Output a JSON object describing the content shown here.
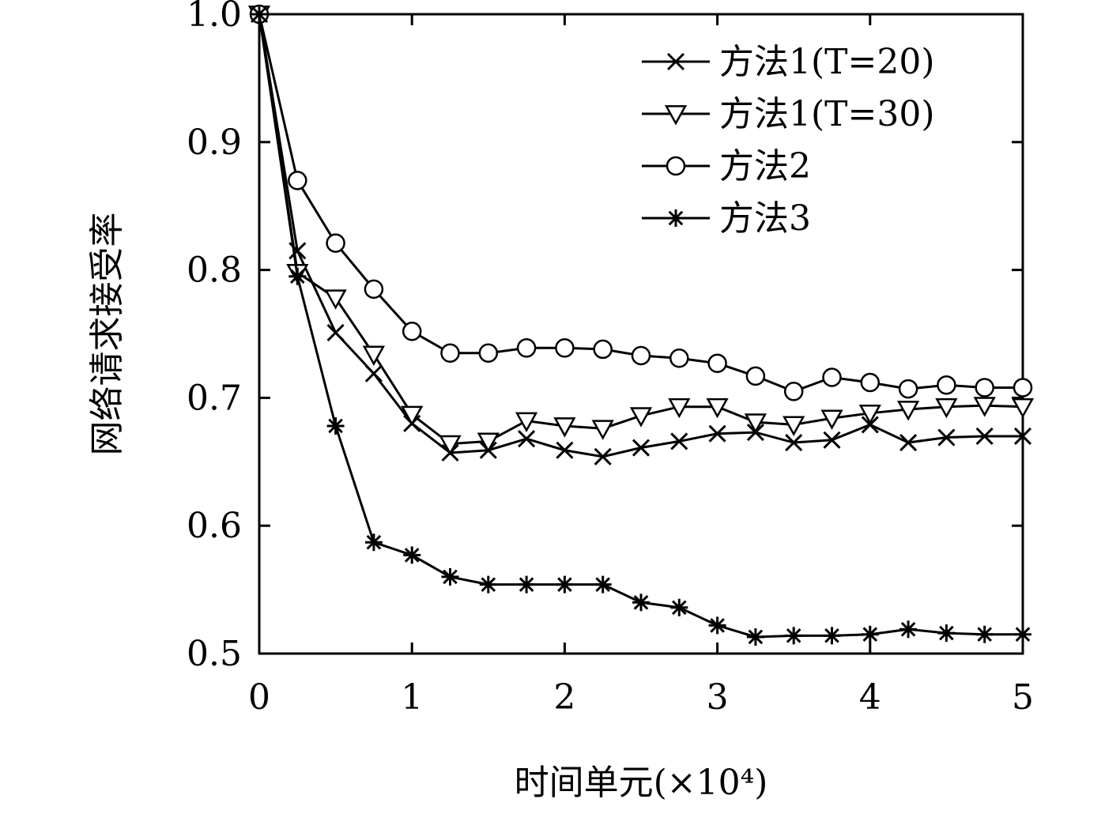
{
  "chart_data": {
    "type": "line",
    "title": "",
    "xlabel": "时间单元(×10⁴)",
    "ylabel": "网络请求接受率",
    "xlim": [
      0,
      5
    ],
    "ylim": [
      0.5,
      1.0
    ],
    "x_ticks": [
      "0",
      "1",
      "2",
      "3",
      "4",
      "5"
    ],
    "y_ticks": [
      "0.5",
      "0.6",
      "0.7",
      "0.8",
      "0.9",
      "1.0"
    ],
    "grid": false,
    "legend_position": "top-right",
    "x": [
      0,
      0.25,
      0.5,
      0.75,
      1.0,
      1.25,
      1.5,
      1.75,
      2.0,
      2.25,
      2.5,
      2.75,
      3.0,
      3.25,
      3.5,
      3.75,
      4.0,
      4.25,
      4.5,
      4.75,
      5.0
    ],
    "series": [
      {
        "name": "方法1(T=20)",
        "marker": "x",
        "values": [
          1.0,
          0.815,
          0.751,
          0.719,
          0.68,
          0.657,
          0.659,
          0.668,
          0.659,
          0.654,
          0.661,
          0.666,
          0.672,
          0.673,
          0.665,
          0.667,
          0.679,
          0.665,
          0.669,
          0.67,
          0.67
        ]
      },
      {
        "name": "方法1(T=30)",
        "marker": "triangle-down",
        "values": [
          1.0,
          0.798,
          0.778,
          0.734,
          0.687,
          0.664,
          0.666,
          0.682,
          0.678,
          0.676,
          0.686,
          0.693,
          0.693,
          0.681,
          0.679,
          0.684,
          0.688,
          0.691,
          0.693,
          0.694,
          0.693
        ]
      },
      {
        "name": "方法2",
        "marker": "circle",
        "values": [
          1.0,
          0.87,
          0.821,
          0.785,
          0.752,
          0.735,
          0.735,
          0.739,
          0.739,
          0.738,
          0.733,
          0.731,
          0.727,
          0.717,
          0.705,
          0.716,
          0.712,
          0.707,
          0.71,
          0.708,
          0.708
        ]
      },
      {
        "name": "方法3",
        "marker": "asterisk",
        "values": [
          1.0,
          0.795,
          0.678,
          0.587,
          0.577,
          0.56,
          0.554,
          0.554,
          0.554,
          0.554,
          0.54,
          0.536,
          0.522,
          0.513,
          0.514,
          0.514,
          0.515,
          0.519,
          0.516,
          0.515,
          0.515
        ]
      }
    ]
  }
}
